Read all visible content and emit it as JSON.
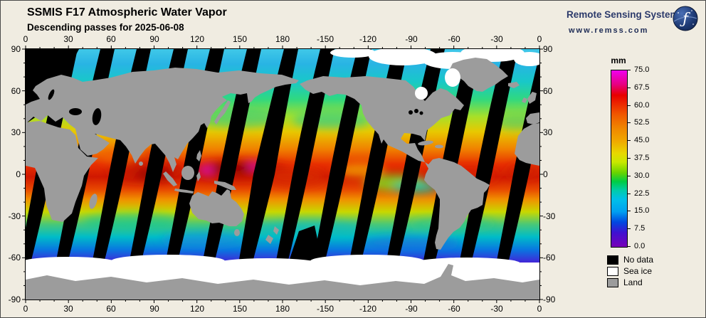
{
  "header": {
    "title": "SSMIS F17 Atmospheric Water Vapor",
    "subtitle": "Descending passes for 2025-06-08"
  },
  "branding": {
    "name": "Remote Sensing Systems",
    "url": "www.remss.com",
    "text_color": "#2c3a6b"
  },
  "map": {
    "projection": "equirectangular 0-360E",
    "axis": {
      "lon_labels": [
        "0",
        "30",
        "60",
        "90",
        "120",
        "150",
        "180",
        "-150",
        "-120",
        "-90",
        "-60",
        "-30",
        "0"
      ],
      "lat_labels": [
        "90",
        "60",
        "30",
        "0",
        "-30",
        "-60",
        "-90"
      ]
    }
  },
  "colorbar": {
    "unit": "mm",
    "min": 0,
    "max": 75,
    "tick_labels": [
      "75.0",
      "67.5",
      "60.0",
      "52.5",
      "45.0",
      "37.5",
      "30.0",
      "22.5",
      "15.0",
      "7.5",
      "0.0"
    ],
    "spectrum_top_to_bottom": [
      "#f000f0",
      "#e80000",
      "#f08800",
      "#e8d800",
      "#68d400",
      "#00ccaa",
      "#00a0f0",
      "#0048e0",
      "#7800b8"
    ]
  },
  "legend": {
    "items": [
      {
        "label": "No data",
        "color": "#000000"
      },
      {
        "label": "Sea ice",
        "color": "#ffffff"
      },
      {
        "label": "Land",
        "color": "#9c9c9c"
      }
    ]
  }
}
